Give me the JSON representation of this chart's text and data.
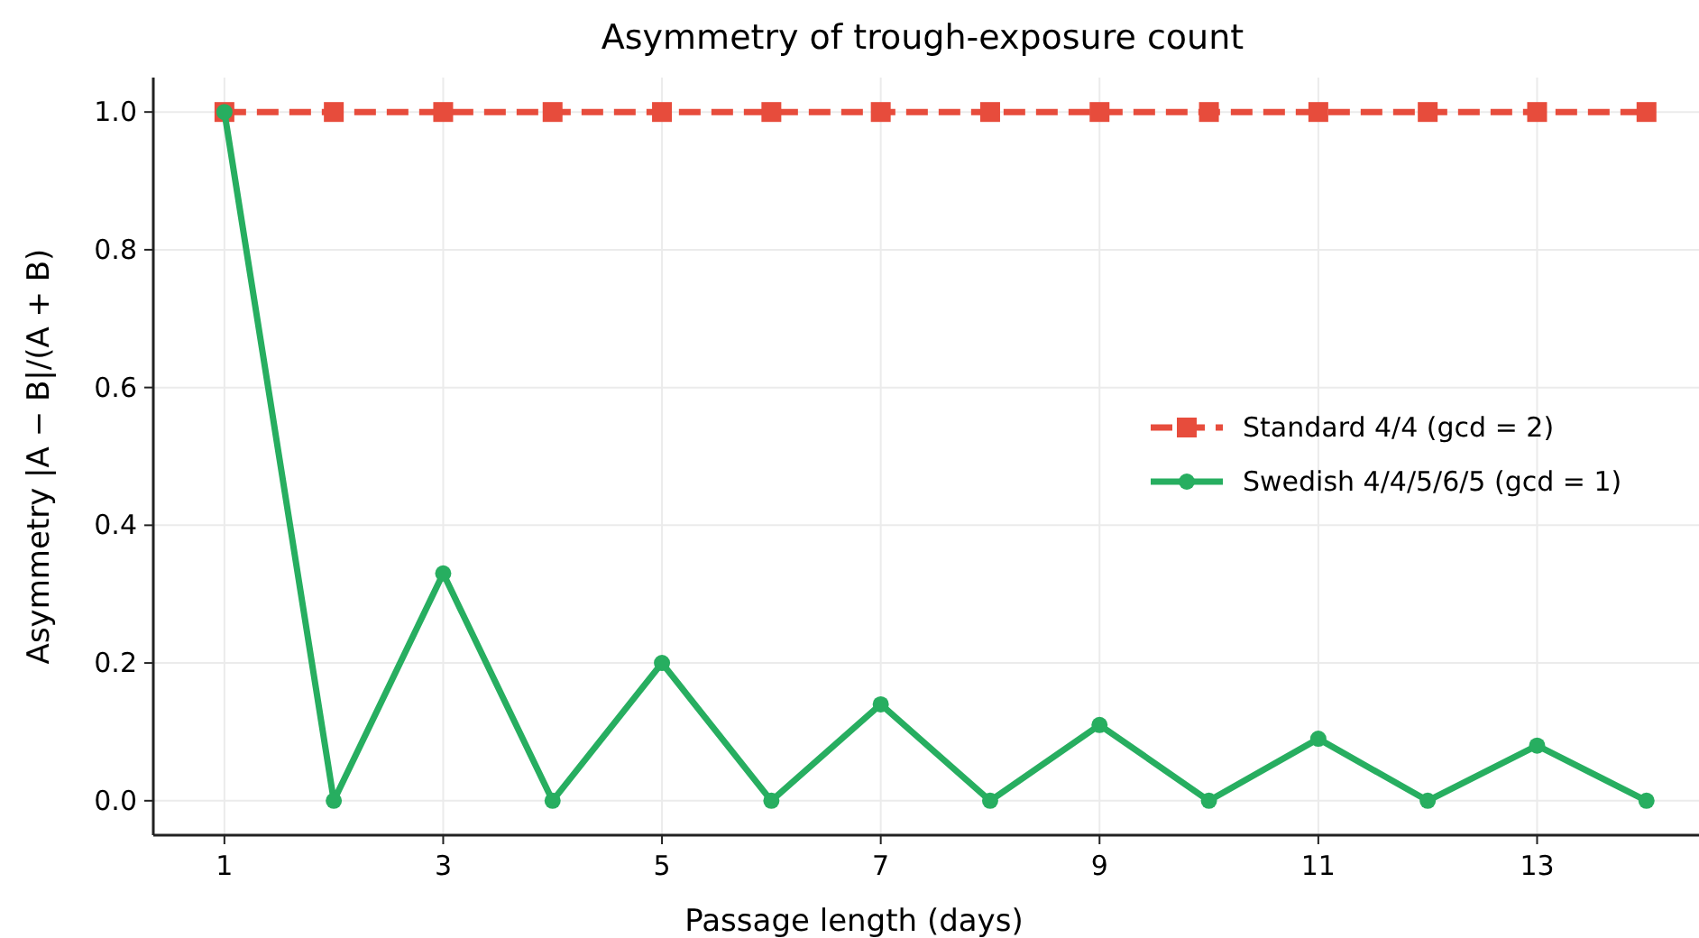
{
  "chart_data": {
    "type": "line",
    "title": "Asymmetry of trough-exposure count",
    "xlabel": "Passage length (days)",
    "ylabel": "Asymmetry  |A − B|/(A + B)",
    "x": [
      1,
      2,
      3,
      4,
      5,
      6,
      7,
      8,
      9,
      10,
      11,
      12,
      13,
      14
    ],
    "series": [
      {
        "name": "Standard 4/4 (gcd = 2)",
        "color": "#e74c3c",
        "marker": "square",
        "line_style": "dashed",
        "values": [
          1,
          1,
          1,
          1,
          1,
          1,
          1,
          1,
          1,
          1,
          1,
          1,
          1,
          1
        ]
      },
      {
        "name": "Swedish 4/4/5/6/5 (gcd = 1)",
        "color": "#27ae60",
        "marker": "circle",
        "line_style": "solid",
        "values": [
          1,
          0,
          0.33,
          0,
          0.2,
          0,
          0.14,
          0,
          0.11,
          0,
          0.09,
          0,
          0.08,
          0
        ]
      }
    ],
    "xlim": [
      0.35,
      14.48
    ],
    "ylim": [
      -0.05,
      1.05
    ],
    "xticks": [
      1,
      3,
      5,
      7,
      9,
      11,
      13
    ],
    "yticks": [
      {
        "value": 0,
        "label": "0.0"
      },
      {
        "value": 0.2,
        "label": "0.2"
      },
      {
        "value": 0.4,
        "label": "0.4"
      },
      {
        "value": 0.6,
        "label": "0.6"
      },
      {
        "value": 0.8,
        "label": "0.8"
      },
      {
        "value": 1,
        "label": "1.0"
      }
    ],
    "grid": true,
    "legend": "right"
  }
}
